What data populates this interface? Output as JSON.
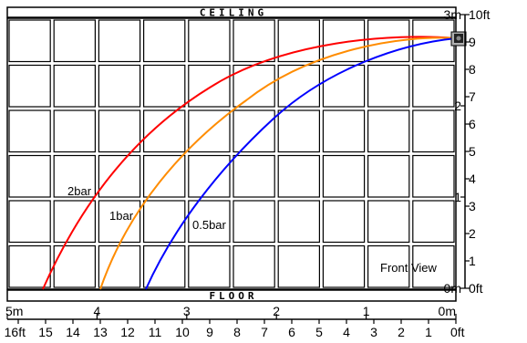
{
  "header": {
    "ceiling_label": "CEILING",
    "floor_label": "FLOOR"
  },
  "view_label": "Front View",
  "curves": [
    {
      "name": "2bar",
      "label": "2bar",
      "color": "#ff0000"
    },
    {
      "name": "1bar",
      "label": "1bar",
      "color": "#ff8c00"
    },
    {
      "name": "0.5bar",
      "label": "0.5bar",
      "color": "#0000ff"
    }
  ],
  "right_axis": {
    "meters_ticks": [
      "3m",
      "2",
      "1",
      "0m"
    ],
    "feet_ticks": [
      "10ft",
      "9",
      "8",
      "7",
      "6",
      "5",
      "4",
      "3",
      "2",
      "1",
      "0ft"
    ]
  },
  "bottom_axis": {
    "meters_ticks": [
      "5m",
      "4",
      "3",
      "2",
      "1",
      "0m"
    ],
    "feet_ticks": [
      "16ft",
      "15",
      "14",
      "13",
      "12",
      "11",
      "10",
      "9",
      "8",
      "7",
      "6",
      "5",
      "4",
      "3",
      "2",
      "1",
      "0ft"
    ]
  },
  "nozzle_icon": "sprinkler-nozzle-icon"
}
